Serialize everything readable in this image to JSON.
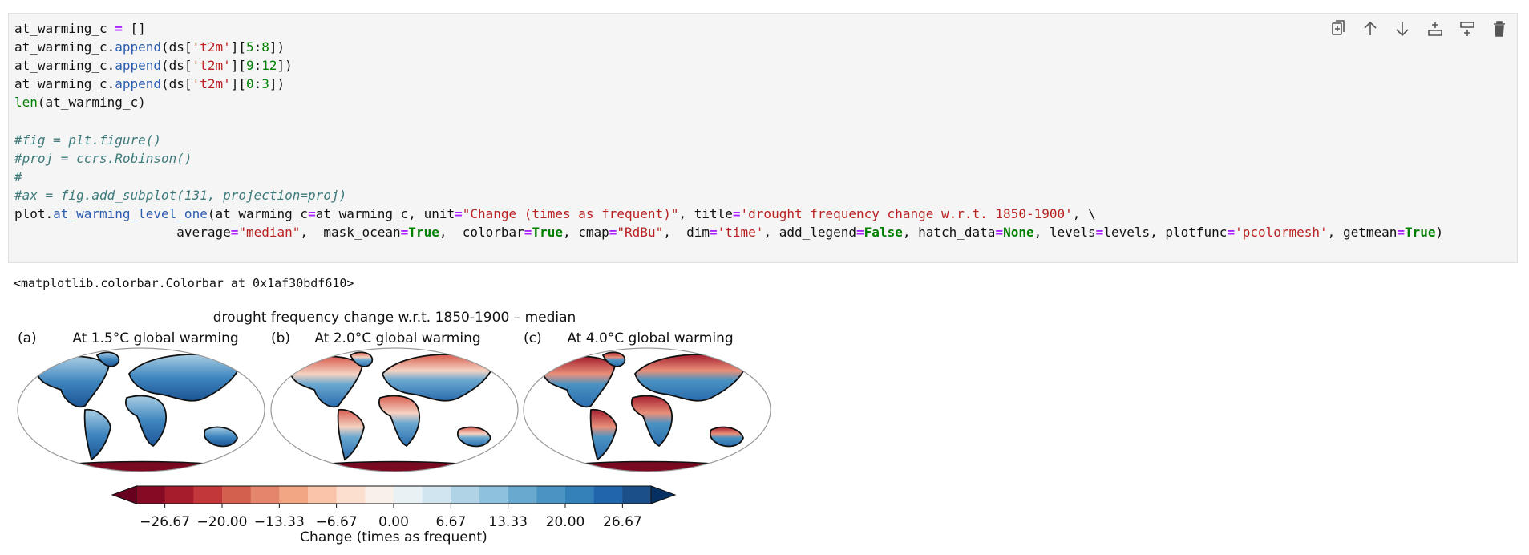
{
  "code": {
    "lines": [
      [
        "at_warming_c ",
        {
          "text": "=",
          "color": "#aa22ff",
          "font_weight": "bold"
        },
        " []"
      ],
      [
        "at_warming_c.",
        {
          "text": "append",
          "color": "#2a5db0"
        },
        "(ds[",
        {
          "text": "'t2m'",
          "color": "#ba2121"
        },
        "][",
        {
          "text": "5",
          "color": "#008000"
        },
        ":",
        {
          "text": "8",
          "color": "#008000"
        },
        "])"
      ],
      [
        "at_warming_c.",
        {
          "text": "append",
          "color": "#2a5db0"
        },
        "(ds[",
        {
          "text": "'t2m'",
          "color": "#ba2121"
        },
        "][",
        {
          "text": "9",
          "color": "#008000"
        },
        ":",
        {
          "text": "12",
          "color": "#008000"
        },
        "])"
      ],
      [
        "at_warming_c.",
        {
          "text": "append",
          "color": "#2a5db0"
        },
        "(ds[",
        {
          "text": "'t2m'",
          "color": "#ba2121"
        },
        "][",
        {
          "text": "0",
          "color": "#008000"
        },
        ":",
        {
          "text": "3",
          "color": "#008000"
        },
        "])"
      ],
      [
        {
          "text": "len",
          "color": "#008000"
        },
        "(at_warming_c)"
      ],
      [],
      [
        {
          "text": "#fig = plt.figure()",
          "color": "#3d7a7a",
          "font_style": "italic"
        }
      ],
      [
        {
          "text": "#proj = ccrs.Robinson()",
          "color": "#3d7a7a",
          "font_style": "italic"
        }
      ],
      [
        {
          "text": "#",
          "color": "#3d7a7a",
          "font_style": "italic"
        }
      ],
      [
        {
          "text": "#ax = fig.add_subplot(131, projection=proj)",
          "color": "#3d7a7a",
          "font_style": "italic"
        }
      ],
      [
        "plot.",
        {
          "text": "at_warming_level_one",
          "color": "#2a5db0"
        },
        "(at_warming_c",
        {
          "text": "=",
          "color": "#aa22ff",
          "font_weight": "bold"
        },
        "at_warming_c, unit",
        {
          "text": "=",
          "color": "#aa22ff",
          "font_weight": "bold"
        },
        {
          "text": "\"Change (times as frequent)\"",
          "color": "#ba2121"
        },
        ", title",
        {
          "text": "=",
          "color": "#aa22ff",
          "font_weight": "bold"
        },
        {
          "text": "'drought frequency change w.r.t. 1850-1900'",
          "color": "#ba2121"
        },
        ", \\"
      ],
      [
        "                     average",
        {
          "text": "=",
          "color": "#aa22ff",
          "font_weight": "bold"
        },
        {
          "text": "\"median\"",
          "color": "#ba2121"
        },
        ",  mask_ocean",
        {
          "text": "=",
          "color": "#aa22ff",
          "font_weight": "bold"
        },
        {
          "text": "True",
          "color": "#008000",
          "font_weight": "bold"
        },
        ",  colorbar",
        {
          "text": "=",
          "color": "#aa22ff",
          "font_weight": "bold"
        },
        {
          "text": "True",
          "color": "#008000",
          "font_weight": "bold"
        },
        ", cmap",
        {
          "text": "=",
          "color": "#aa22ff",
          "font_weight": "bold"
        },
        {
          "text": "\"RdBu\"",
          "color": "#ba2121"
        },
        ",  dim",
        {
          "text": "=",
          "color": "#aa22ff",
          "font_weight": "bold"
        },
        {
          "text": "'time'",
          "color": "#ba2121"
        },
        ", add_legend",
        {
          "text": "=",
          "color": "#aa22ff",
          "font_weight": "bold"
        },
        {
          "text": "False",
          "color": "#008000",
          "font_weight": "bold"
        },
        ", hatch_data",
        {
          "text": "=",
          "color": "#aa22ff",
          "font_weight": "bold"
        },
        {
          "text": "None",
          "color": "#008000",
          "font_weight": "bold"
        },
        ", levels",
        {
          "text": "=",
          "color": "#aa22ff",
          "font_weight": "bold"
        },
        "levels, plotfunc",
        {
          "text": "=",
          "color": "#aa22ff",
          "font_weight": "bold"
        },
        {
          "text": "'pcolormesh'",
          "color": "#ba2121"
        },
        ", getmean",
        {
          "text": "=",
          "color": "#aa22ff",
          "font_weight": "bold"
        },
        {
          "text": "True",
          "color": "#008000",
          "font_weight": "bold"
        },
        ")"
      ]
    ]
  },
  "output": {
    "text": "<matplotlib.colorbar.Colorbar at 0x1af30bdf610>"
  },
  "figure": {
    "title": "drought frequency change w.r.t. 1850-1900 – median",
    "panels": [
      {
        "label": "(a)",
        "title": "At 1.5°C global warming"
      },
      {
        "label": "(b)",
        "title": "At 2.0°C global warming"
      },
      {
        "label": "(c)",
        "title": "At 4.0°C global warming"
      }
    ],
    "colorbar": {
      "label": "Change (times as frequent)",
      "lim": [
        -30,
        30
      ],
      "ticks": [
        {
          "value": -26.67,
          "label": "−26.67"
        },
        {
          "value": -20,
          "label": "−20.00"
        },
        {
          "value": -13.33,
          "label": "−13.33"
        },
        {
          "value": -6.67,
          "label": "−6.67"
        },
        {
          "value": 0,
          "label": "0.00"
        },
        {
          "value": 6.67,
          "label": "6.67"
        },
        {
          "value": 13.33,
          "label": "13.33"
        },
        {
          "value": 20,
          "label": "20.00"
        },
        {
          "value": 26.67,
          "label": "26.67"
        }
      ],
      "extend_colors": [
        "#67001f",
        "#053061"
      ],
      "colors": [
        "#870a24",
        "#a51d2d",
        "#c1373a",
        "#d35f4f",
        "#e4866c",
        "#f3a683",
        "#f9c4a9",
        "#fcdfcf",
        "#f8f0eb",
        "#eaf1f5",
        "#d1e5f0",
        "#b0d3e6",
        "#8ec1dc",
        "#69a9cf",
        "#4a93c2",
        "#3480b9",
        "#2166ac",
        "#1a4f8a"
      ]
    }
  }
}
